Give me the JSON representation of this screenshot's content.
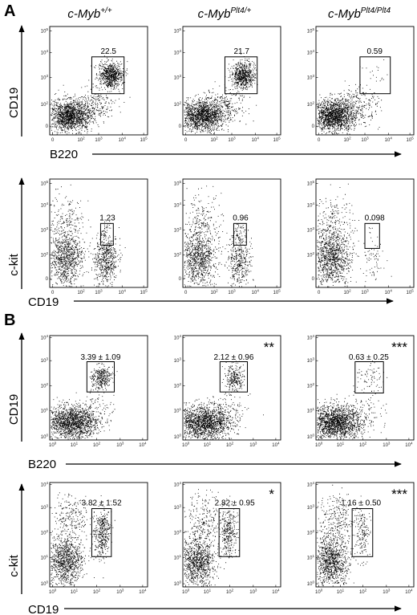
{
  "figure": {
    "panel_labels": [
      "A",
      "B"
    ],
    "column_headers": [
      {
        "base": "c-Myb",
        "sup": "+/+"
      },
      {
        "base": "c-Myb",
        "sup": "Plt4/+"
      },
      {
        "base": "c-Myb",
        "sup": "Plt4/Plt4"
      }
    ],
    "colors": {
      "dots": "#000000",
      "background": "#ffffff",
      "gate": "#000000"
    }
  },
  "chart_data": [
    {
      "type": "scatter",
      "panel": "A",
      "row": 1,
      "xlabel": "B220",
      "ylabel": "CD19",
      "scale": "biexponential",
      "x_ticks": [
        {
          "b": "0"
        },
        {
          "b": "10",
          "s": "2"
        },
        {
          "b": "10",
          "s": "3"
        },
        {
          "b": "10",
          "s": "4"
        },
        {
          "b": "10",
          "s": "5"
        }
      ],
      "y_ticks": [
        {
          "b": "0"
        },
        {
          "b": "10",
          "s": "2"
        },
        {
          "b": "10",
          "s": "3"
        },
        {
          "b": "10",
          "s": "4"
        },
        {
          "b": "10",
          "s": "5"
        }
      ],
      "gates": [
        "22.5",
        "21.7",
        "0.59"
      ],
      "stars": [
        "",
        "",
        ""
      ]
    },
    {
      "type": "scatter",
      "panel": "A",
      "row": 2,
      "xlabel": "CD19",
      "ylabel": "c-kit",
      "scale": "biexponential",
      "x_ticks": [
        {
          "b": "0"
        },
        {
          "b": "10",
          "s": "2"
        },
        {
          "b": "10",
          "s": "3"
        },
        {
          "b": "10",
          "s": "4"
        },
        {
          "b": "10",
          "s": "5"
        }
      ],
      "y_ticks": [
        {
          "b": "0"
        },
        {
          "b": "10",
          "s": "2"
        },
        {
          "b": "10",
          "s": "3"
        },
        {
          "b": "10",
          "s": "4"
        },
        {
          "b": "10",
          "s": "5"
        }
      ],
      "gates": [
        "1.23",
        "0.96",
        "0.098"
      ],
      "stars": [
        "",
        "",
        ""
      ]
    },
    {
      "type": "scatter",
      "panel": "B",
      "row": 1,
      "xlabel": "B220",
      "ylabel": "CD19",
      "scale": "log",
      "x_ticks": [
        {
          "b": "10",
          "s": "0"
        },
        {
          "b": "10",
          "s": "1"
        },
        {
          "b": "10",
          "s": "2"
        },
        {
          "b": "10",
          "s": "3"
        },
        {
          "b": "10",
          "s": "4"
        }
      ],
      "y_ticks": [
        {
          "b": "10",
          "s": "0"
        },
        {
          "b": "10",
          "s": "1"
        },
        {
          "b": "10",
          "s": "2"
        },
        {
          "b": "10",
          "s": "3"
        },
        {
          "b": "10",
          "s": "4"
        }
      ],
      "gates": [
        "3.39 ± 1.09",
        "2.12 ± 0.96",
        "0.63 ± 0.25"
      ],
      "stars": [
        "",
        "**",
        "***"
      ]
    },
    {
      "type": "scatter",
      "panel": "B",
      "row": 2,
      "xlabel": "CD19",
      "ylabel": "c-kit",
      "scale": "log",
      "x_ticks": [
        {
          "b": "10",
          "s": "0"
        },
        {
          "b": "10",
          "s": "1"
        },
        {
          "b": "10",
          "s": "2"
        },
        {
          "b": "10",
          "s": "3"
        },
        {
          "b": "10",
          "s": "4"
        }
      ],
      "y_ticks": [
        {
          "b": "10",
          "s": "0"
        },
        {
          "b": "10",
          "s": "1"
        },
        {
          "b": "10",
          "s": "2"
        },
        {
          "b": "10",
          "s": "3"
        },
        {
          "b": "10",
          "s": "4"
        }
      ],
      "gates": [
        "3.82 ± 1.52",
        "2.82 ± 0.95",
        "1.16 ± 0.50"
      ],
      "stars": [
        "",
        "*",
        "***"
      ]
    }
  ]
}
